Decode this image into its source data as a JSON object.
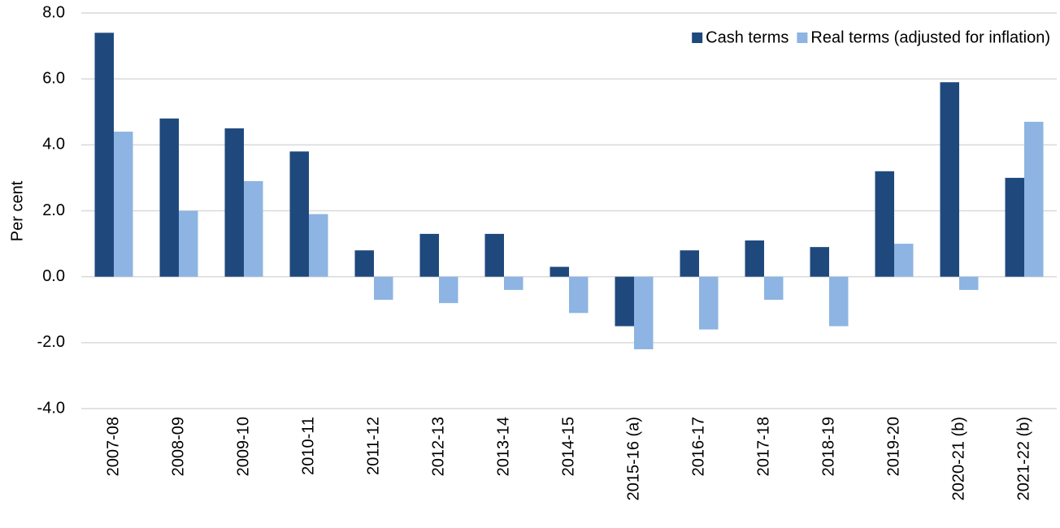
{
  "chart_data": {
    "type": "bar",
    "y_label": "Per cent",
    "categories": [
      "2007-08",
      "2008-09",
      "2009-10",
      "2010-11",
      "2011-12",
      "2012-13",
      "2013-14",
      "2014-15",
      "2015-16 (a)",
      "2016-17",
      "2017-18",
      "2018-19",
      "2019-20",
      "2020-21 (b)",
      "2021-22 (b)"
    ],
    "series": [
      {
        "name": "Cash terms",
        "color": "#1f497d",
        "values": [
          7.4,
          4.8,
          4.5,
          3.8,
          0.8,
          1.3,
          1.3,
          0.3,
          -1.5,
          0.8,
          1.1,
          0.9,
          3.2,
          5.9,
          3.0
        ]
      },
      {
        "name": "Real terms (adjusted for inflation)",
        "color": "#8db4e2",
        "values": [
          4.4,
          2.0,
          2.9,
          1.9,
          -0.7,
          -0.8,
          -0.4,
          -1.1,
          -2.2,
          -1.6,
          -0.7,
          -1.5,
          1.0,
          -0.4,
          4.7
        ]
      }
    ],
    "ylim": [
      -4,
      8
    ],
    "yticks": [
      {
        "value": -4,
        "label": "-4.0"
      },
      {
        "value": -2,
        "label": "-2.0"
      },
      {
        "value": 0,
        "label": "0.0"
      },
      {
        "value": 2,
        "label": "2.0"
      },
      {
        "value": 4,
        "label": "4.0"
      },
      {
        "value": 6,
        "label": "6.0"
      },
      {
        "value": 8,
        "label": "8.0"
      }
    ],
    "grid": true,
    "legend": "top-right"
  }
}
